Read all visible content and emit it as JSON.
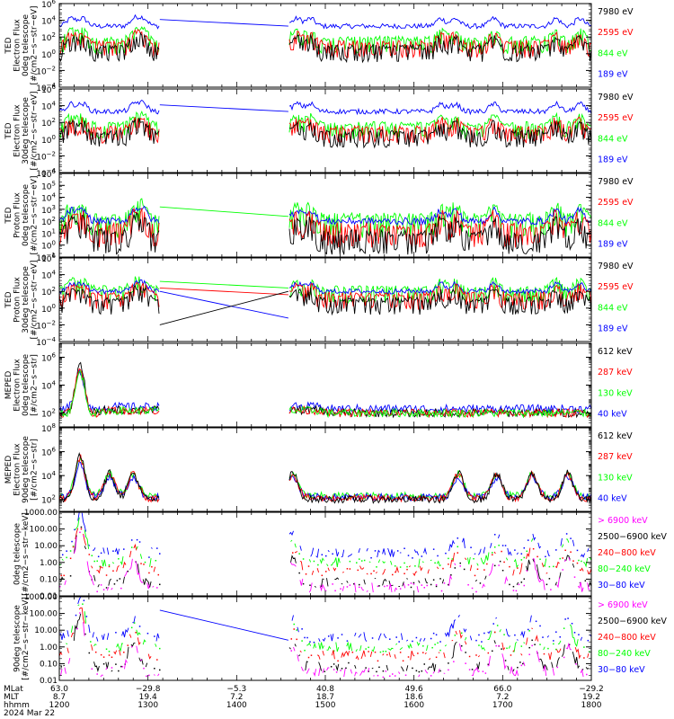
{
  "colors": {
    "blue": "#0000ff",
    "red": "#ff0000",
    "green": "#00ff00",
    "black": "#000000",
    "magenta": "#ff00ff"
  },
  "x_axis": {
    "row_labels": [
      "MLat",
      "MLT",
      "hhmm"
    ],
    "date": "2024 Mar 22",
    "ticks": [
      {
        "mlat": "63.0",
        "mlt": "8.7",
        "hhmm": "1200"
      },
      {
        "mlat": "−29.8",
        "mlt": "19.4",
        "hhmm": "1300"
      },
      {
        "mlat": "−5.3",
        "mlt": "7.2",
        "hhmm": "1400"
      },
      {
        "mlat": "40.8",
        "mlt": "18.7",
        "hhmm": "1500"
      },
      {
        "mlat": "49.6",
        "mlt": "18.6",
        "hhmm": "1600"
      },
      {
        "mlat": "66.0",
        "mlt": "7.2",
        "hhmm": "1700"
      },
      {
        "mlat": "−29.2",
        "mlt": "19.2",
        "hhmm": "1800"
      }
    ]
  },
  "chart_data": [
    {
      "type": "line",
      "ylabel": [
        "TED",
        "Electron Flux",
        "0deg telescope",
        "[#/cm2−s−str−eV]"
      ],
      "log_scale": true,
      "ylim_exp": [
        -4,
        6
      ],
      "ytick_exps": [
        -4,
        -2,
        0,
        2,
        4,
        6
      ],
      "ylim": [
        0.0001,
        1000000
      ],
      "style": "ted_e",
      "series": [
        {
          "name": "7980 eV",
          "color": "black",
          "level": 0.8
        },
        {
          "name": "2595 eV",
          "color": "red",
          "level": 1.3
        },
        {
          "name": "844 eV",
          "color": "green",
          "level": 1.8
        },
        {
          "name": "189 eV",
          "color": "blue",
          "level": 3.3
        }
      ]
    },
    {
      "type": "line",
      "ylabel": [
        "TED",
        "Electron Flux",
        "30deg telescope",
        "[#/cm2−s−str−eV]"
      ],
      "log_scale": true,
      "ylim_exp": [
        -4,
        6
      ],
      "ytick_exps": [
        -4,
        -2,
        0,
        2,
        4,
        6
      ],
      "ylim": [
        0.0001,
        1000000
      ],
      "style": "ted_e",
      "series": [
        {
          "name": "7980 eV",
          "color": "black",
          "level": 0.8
        },
        {
          "name": "2595 eV",
          "color": "red",
          "level": 1.3
        },
        {
          "name": "844 eV",
          "color": "green",
          "level": 1.8
        },
        {
          "name": "189 eV",
          "color": "blue",
          "level": 3.3
        }
      ]
    },
    {
      "type": "line",
      "ylabel": [
        "TED",
        "Proton Flux",
        "0deg telescope",
        "[#/cm2−s−str−eV]"
      ],
      "log_scale": true,
      "ylim_exp": [
        -1,
        6
      ],
      "ytick_exps": [
        -1,
        0,
        1,
        2,
        3,
        4,
        5,
        6
      ],
      "ylim": [
        0.1,
        1000000
      ],
      "style": "ted_p",
      "series": [
        {
          "name": "7980 eV",
          "color": "black",
          "level": 1.0
        },
        {
          "name": "2595 eV",
          "color": "red",
          "level": 1.6
        },
        {
          "name": "844 eV",
          "color": "green",
          "level": 2.4
        },
        {
          "name": "189 eV",
          "color": "blue",
          "level": 2.0
        }
      ]
    },
    {
      "type": "line",
      "ylabel": [
        "TED",
        "Proton Flux",
        "30deg telescope",
        "[#/cm2−s−str−eV]"
      ],
      "log_scale": true,
      "ylim_exp": [
        -4,
        6
      ],
      "ytick_exps": [
        -4,
        -2,
        0,
        2,
        4,
        6
      ],
      "ylim": [
        0.0001,
        1000000
      ],
      "style": "ted_p30",
      "series": [
        {
          "name": "7980 eV",
          "color": "black",
          "level": 1.0
        },
        {
          "name": "2595 eV",
          "color": "red",
          "level": 1.6
        },
        {
          "name": "844 eV",
          "color": "green",
          "level": 2.4
        },
        {
          "name": "189 eV",
          "color": "blue",
          "level": 2.0
        }
      ]
    },
    {
      "type": "line",
      "ylabel": [
        "MEPED",
        "Electron Flux",
        "0deg telescope",
        "[#/cm2−s−str]"
      ],
      "log_scale": true,
      "ylim_exp": [
        1,
        7
      ],
      "ytick_exps": [
        2,
        4,
        6
      ],
      "ylim": [
        10,
        10000000
      ],
      "style": "meped0",
      "series": [
        {
          "name": "612 keV",
          "color": "black",
          "level": 2.0
        },
        {
          "name": "287 keV",
          "color": "red",
          "level": 2.0
        },
        {
          "name": "130 keV",
          "color": "green",
          "level": 2.0
        },
        {
          "name": "40 keV",
          "color": "blue",
          "level": 2.3
        }
      ]
    },
    {
      "type": "line",
      "ylabel": [
        "MEPED",
        "Electron Flux",
        "90deg telescope",
        "[#/cm2−s−str]"
      ],
      "log_scale": true,
      "ylim_exp": [
        1,
        8
      ],
      "ytick_exps": [
        2,
        4,
        6,
        8
      ],
      "ylim": [
        10,
        100000000
      ],
      "style": "meped90",
      "series": [
        {
          "name": "612 keV",
          "color": "black",
          "level": 2.0
        },
        {
          "name": "287 keV",
          "color": "red",
          "level": 2.1
        },
        {
          "name": "130 keV",
          "color": "green",
          "level": 2.3
        },
        {
          "name": "40 keV",
          "color": "blue",
          "level": 2.2
        }
      ]
    },
    {
      "type": "line",
      "ylabel": [
        "0deg telescope",
        "[#/cm2−s−str−keV]"
      ],
      "log_scale": true,
      "ylim_exp": [
        -2,
        3
      ],
      "ytick_exps": [
        -2,
        -1,
        0,
        1,
        2,
        3
      ],
      "ytick_labels": [
        "0.01",
        "0.10",
        "1.00",
        "10.00",
        "100.00",
        "1000.00"
      ],
      "ylim": [
        0.01,
        1000
      ],
      "style": "prot0",
      "series": [
        {
          "name": "> 6900 keV",
          "color": "magenta",
          "level": -1.5
        },
        {
          "name": "2500−6900 keV",
          "color": "black",
          "level": -1.2
        },
        {
          "name": "240−800 keV",
          "color": "red",
          "level": -0.5
        },
        {
          "name": "80−240 keV",
          "color": "green",
          "level": 0.0
        },
        {
          "name": "30−80 keV",
          "color": "blue",
          "level": 0.6
        }
      ]
    },
    {
      "type": "line",
      "ylabel": [
        "90deg telescope",
        "[#/cm2−s−str−keV]"
      ],
      "log_scale": true,
      "ylim_exp": [
        -2,
        3
      ],
      "ytick_exps": [
        -2,
        -1,
        0,
        1,
        2,
        3
      ],
      "ytick_labels": [
        "0.01",
        "0.10",
        "1.00",
        "10.00",
        "100.00",
        "1000.00"
      ],
      "ylim": [
        0.01,
        1000
      ],
      "style": "prot90",
      "series": [
        {
          "name": "> 6900 keV",
          "color": "magenta",
          "level": -1.5
        },
        {
          "name": "2500−6900 keV",
          "color": "black",
          "level": -1.2
        },
        {
          "name": "240−800 keV",
          "color": "red",
          "level": -0.5
        },
        {
          "name": "80−240 keV",
          "color": "green",
          "level": 0.0
        },
        {
          "name": "30−80 keV",
          "color": "blue",
          "level": 0.6
        }
      ]
    }
  ]
}
